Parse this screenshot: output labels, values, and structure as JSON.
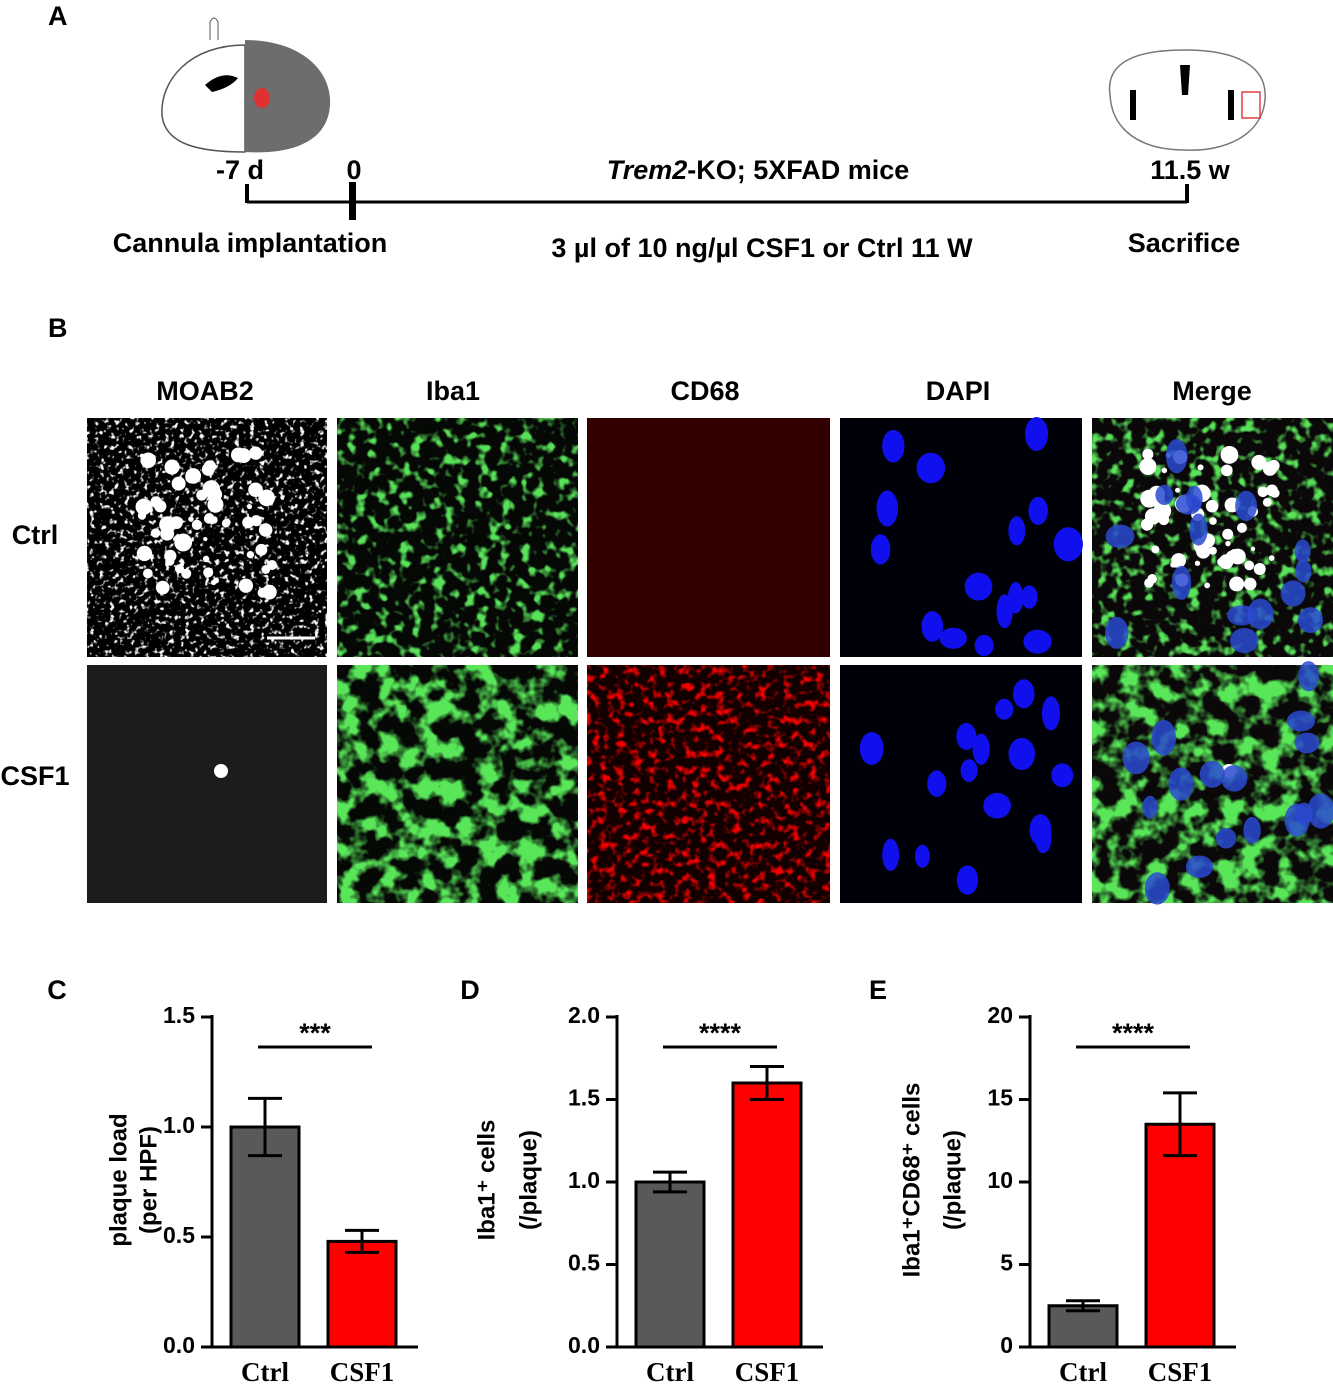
{
  "panel_a": {
    "label": "A",
    "timepoints": [
      "-7 d",
      "0",
      "11.5 w"
    ],
    "cohort": {
      "italic": "Trem2",
      "rest": "-KO; 5XFAD mice"
    },
    "events": [
      "Cannula implantation",
      "3 µl of 10 ng/µl CSF1 or Ctrl 11 W",
      "Sacrifice"
    ]
  },
  "panel_b": {
    "label": "B",
    "columns": [
      "MOAB2",
      "Iba1",
      "CD68",
      "DAPI",
      "Merge"
    ],
    "rows": [
      "Ctrl",
      "CSF1"
    ]
  },
  "chart_data": [
    {
      "type": "bar",
      "panel_label": "C",
      "y_label": [
        "plaque load",
        "(per HPF)"
      ],
      "categories": [
        "Ctrl",
        "CSF1"
      ],
      "values": [
        1.0,
        0.48
      ],
      "errors": [
        0.13,
        0.05
      ],
      "colors": [
        "#595959",
        "#ff0000"
      ],
      "ylim": [
        0,
        1.5
      ],
      "yticks": [
        {
          "value": 0,
          "label": "0.0"
        },
        {
          "value": 0.5,
          "label": "0.5"
        },
        {
          "value": 1,
          "label": "1.0"
        },
        {
          "value": 1.5,
          "label": "1.5"
        }
      ],
      "significance": "***"
    },
    {
      "type": "bar",
      "panel_label": "D",
      "y_label": [
        "Iba1⁺ cells",
        "(/plaque)"
      ],
      "categories": [
        "Ctrl",
        "CSF1"
      ],
      "values": [
        1.0,
        1.6
      ],
      "errors": [
        0.06,
        0.1
      ],
      "colors": [
        "#595959",
        "#ff0000"
      ],
      "ylim": [
        0,
        2
      ],
      "yticks": [
        {
          "value": 0,
          "label": "0.0"
        },
        {
          "value": 0.5,
          "label": "0.5"
        },
        {
          "value": 1,
          "label": "1.0"
        },
        {
          "value": 1.5,
          "label": "1.5"
        },
        {
          "value": 2,
          "label": "2.0"
        }
      ],
      "significance": "****"
    },
    {
      "type": "bar",
      "panel_label": "E",
      "y_label": [
        "Iba1⁺CD68⁺ cells",
        "(/plaque)"
      ],
      "categories": [
        "Ctrl",
        "CSF1"
      ],
      "values": [
        2.5,
        13.5
      ],
      "errors": [
        0.3,
        1.9
      ],
      "colors": [
        "#595959",
        "#ff0000"
      ],
      "ylim": [
        0,
        20
      ],
      "yticks": [
        0,
        5,
        10,
        15,
        20
      ],
      "significance": "****"
    }
  ]
}
